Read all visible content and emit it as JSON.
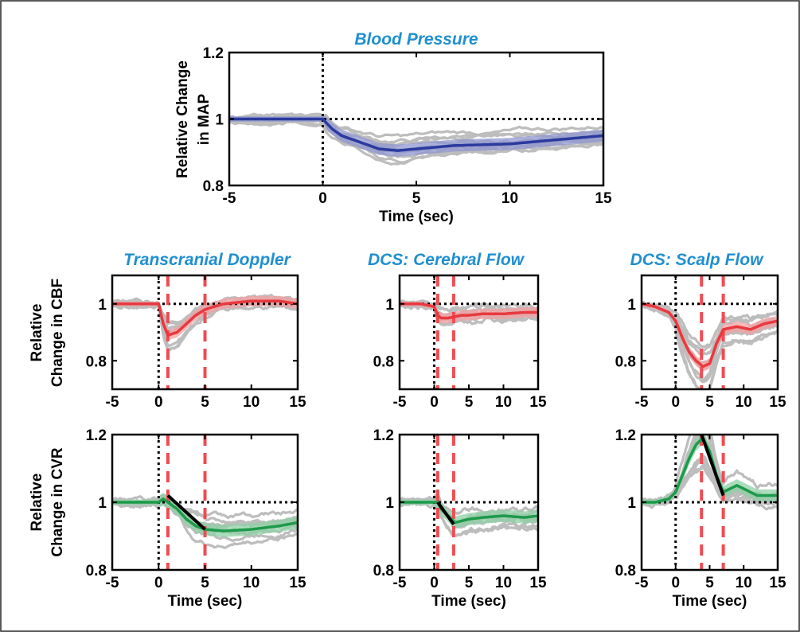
{
  "colors": {
    "title": "#1f8fd0",
    "map": "#2b3a9e",
    "map_band": "#8f95d0",
    "cbf": "#e8393f",
    "cbf_band": "#f4a0a3",
    "cvr": "#1d9a4a",
    "cvr_band": "#8fd0a5",
    "subjects": "#bdbdbd",
    "marker": "#f04b52"
  },
  "chart_data": [
    {
      "type": "line",
      "title": "Blood Pressure",
      "xlabel": "Time (sec)",
      "ylabel": [
        "Relative Change",
        "in MAP"
      ],
      "xlim": [
        -5,
        15
      ],
      "ylim": [
        0.8,
        1.2
      ],
      "xticks": [
        "-5",
        "0",
        "5",
        "10",
        "15"
      ],
      "yticks": [
        "0.8",
        "1",
        "1.2"
      ],
      "series": [
        {
          "x": [
            -5,
            -2,
            0,
            0.5,
            1,
            2,
            3,
            4,
            5,
            7,
            10,
            13,
            15
          ],
          "y": [
            1.0,
            1.0,
            1.0,
            0.97,
            0.95,
            0.93,
            0.91,
            0.905,
            0.91,
            0.92,
            0.925,
            0.94,
            0.95
          ]
        }
      ],
      "reference_lines": {
        "x": [
          0
        ],
        "y": [
          1.0
        ]
      }
    },
    {
      "type": "line",
      "title": "Transcranial Doppler",
      "xlabel": "",
      "ylabel": [
        "Relative",
        "Change in CBF"
      ],
      "xlim": [
        -5,
        15
      ],
      "ylim": [
        0.7,
        1.1
      ],
      "xticks": [
        "-5",
        "0",
        "5",
        "10",
        "15"
      ],
      "yticks": [
        "0.8",
        "1"
      ],
      "series": [
        {
          "x": [
            -5,
            -2,
            0,
            0.5,
            1,
            2,
            3,
            4,
            5,
            7,
            10,
            13,
            15
          ],
          "y": [
            1.0,
            1.0,
            1.0,
            0.93,
            0.89,
            0.9,
            0.93,
            0.96,
            0.98,
            1.0,
            1.01,
            1.01,
            1.0
          ]
        }
      ],
      "reference_lines": {
        "x": [
          0
        ],
        "y": [
          1.0
        ]
      },
      "markers": [
        1,
        5
      ]
    },
    {
      "type": "line",
      "title": "DCS: Cerebral Flow",
      "xlabel": "",
      "ylabel": [],
      "xlim": [
        -5,
        15
      ],
      "ylim": [
        0.7,
        1.1
      ],
      "xticks": [
        "-5",
        "0",
        "5",
        "10",
        "15"
      ],
      "yticks": [
        "0.8",
        "1"
      ],
      "series": [
        {
          "x": [
            -5,
            -2,
            0,
            0.5,
            1,
            2,
            3,
            4,
            5,
            7,
            10,
            13,
            15
          ],
          "y": [
            1.0,
            1.0,
            0.99,
            0.96,
            0.95,
            0.95,
            0.955,
            0.96,
            0.96,
            0.965,
            0.965,
            0.97,
            0.97
          ]
        }
      ],
      "reference_lines": {
        "x": [
          0
        ],
        "y": [
          1.0
        ]
      },
      "markers": [
        0.5,
        2.8
      ]
    },
    {
      "type": "line",
      "title": "DCS: Scalp Flow",
      "xlabel": "",
      "ylabel": [],
      "xlim": [
        -5,
        15
      ],
      "ylim": [
        0.7,
        1.1
      ],
      "xticks": [
        "-5",
        "0",
        "5",
        "10",
        "15"
      ],
      "yticks": [
        "0.8",
        "1"
      ],
      "series": [
        {
          "x": [
            -5,
            -3,
            -1,
            0,
            1,
            2,
            3,
            4,
            5,
            6,
            7,
            9,
            11,
            13,
            15
          ],
          "y": [
            1.0,
            0.99,
            0.97,
            0.94,
            0.88,
            0.83,
            0.8,
            0.78,
            0.79,
            0.86,
            0.91,
            0.92,
            0.91,
            0.93,
            0.94
          ]
        }
      ],
      "reference_lines": {
        "x": [
          0
        ],
        "y": [
          1.0
        ]
      },
      "markers": [
        3.8,
        7
      ]
    },
    {
      "type": "line",
      "title": "",
      "xlabel": "Time (sec)",
      "ylabel": [
        "Relative",
        "Change in CVR"
      ],
      "xlim": [
        -5,
        15
      ],
      "ylim": [
        0.8,
        1.2
      ],
      "xticks": [
        "-5",
        "0",
        "5",
        "10",
        "15"
      ],
      "yticks": [
        "0.8",
        "1",
        "1.2"
      ],
      "series": [
        {
          "x": [
            -5,
            -2,
            0,
            0.5,
            1,
            2,
            3,
            4,
            5,
            7,
            10,
            13,
            15
          ],
          "y": [
            1.0,
            1.0,
            1.0,
            1.01,
            1.0,
            0.98,
            0.95,
            0.93,
            0.92,
            0.915,
            0.92,
            0.93,
            0.94
          ]
        }
      ],
      "reference_lines": {
        "x": [
          0
        ],
        "y": [
          1.0
        ]
      },
      "markers": [
        1,
        5
      ],
      "slope_line": [
        [
          1,
          1.02
        ],
        [
          5,
          0.92
        ]
      ]
    },
    {
      "type": "line",
      "title": "",
      "xlabel": "Time (sec)",
      "ylabel": [],
      "xlim": [
        -5,
        15
      ],
      "ylim": [
        0.8,
        1.2
      ],
      "xticks": [
        "-5",
        "0",
        "5",
        "10",
        "15"
      ],
      "yticks": [
        "0.8",
        "1",
        "1.2"
      ],
      "series": [
        {
          "x": [
            -5,
            -2,
            0,
            0.5,
            1,
            2,
            3,
            4,
            5,
            7,
            10,
            13,
            15
          ],
          "y": [
            1.0,
            1.0,
            1.0,
            1.0,
            0.98,
            0.96,
            0.94,
            0.945,
            0.95,
            0.955,
            0.96,
            0.955,
            0.96
          ]
        }
      ],
      "reference_lines": {
        "x": [
          0
        ],
        "y": [
          1.0
        ]
      },
      "markers": [
        0.5,
        2.8
      ],
      "slope_line": [
        [
          0.5,
          1.0
        ],
        [
          2.8,
          0.935
        ]
      ]
    },
    {
      "type": "line",
      "title": "",
      "xlabel": "Time (sec)",
      "ylabel": [],
      "xlim": [
        -5,
        15
      ],
      "ylim": [
        0.8,
        1.2
      ],
      "xticks": [
        "-5",
        "0",
        "5",
        "10",
        "15"
      ],
      "yticks": [
        "0.8",
        "1",
        "1.2"
      ],
      "series": [
        {
          "x": [
            -5,
            -3,
            -1,
            0,
            1,
            2,
            3,
            4,
            5,
            6,
            7,
            8,
            9,
            10,
            12,
            14,
            15
          ],
          "y": [
            1.0,
            1.0,
            1.01,
            1.03,
            1.08,
            1.13,
            1.17,
            1.19,
            1.15,
            1.08,
            1.03,
            1.04,
            1.05,
            1.04,
            1.02,
            1.02,
            1.02
          ]
        }
      ],
      "reference_lines": {
        "x": [
          0
        ],
        "y": [
          1.0
        ]
      },
      "markers": [
        3.8,
        7
      ],
      "slope_line": [
        [
          3.8,
          1.2
        ],
        [
          7,
          1.02
        ]
      ]
    }
  ]
}
